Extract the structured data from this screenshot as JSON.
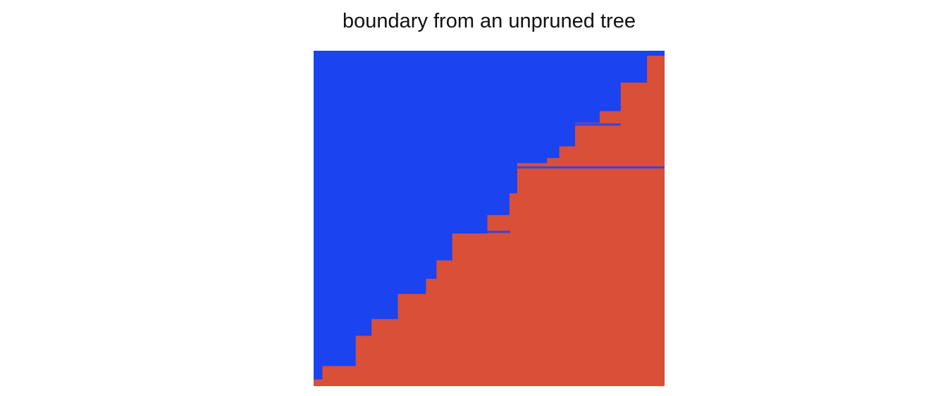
{
  "chart_data": {
    "type": "heatmap",
    "title": "boundary from an unpruned tree",
    "xlabel": "",
    "ylabel": "",
    "xlim": [
      0,
      1
    ],
    "ylim": [
      0,
      1
    ],
    "grid": false,
    "axes_visible": false,
    "colors": {
      "above_boundary": "#1b43f0",
      "below_boundary": "#d94f37"
    },
    "boundary_steps": [
      {
        "x0": 0.0,
        "x1": 0.025,
        "y": 0.02
      },
      {
        "x0": 0.025,
        "x1": 0.12,
        "y": 0.06
      },
      {
        "x0": 0.12,
        "x1": 0.165,
        "y": 0.15
      },
      {
        "x0": 0.165,
        "x1": 0.24,
        "y": 0.2
      },
      {
        "x0": 0.24,
        "x1": 0.32,
        "y": 0.275
      },
      {
        "x0": 0.32,
        "x1": 0.35,
        "y": 0.32
      },
      {
        "x0": 0.35,
        "x1": 0.395,
        "y": 0.375
      },
      {
        "x0": 0.395,
        "x1": 0.495,
        "y": 0.455
      },
      {
        "x0": 0.495,
        "x1": 0.558,
        "y": 0.51
      },
      {
        "x0": 0.558,
        "x1": 0.58,
        "y": 0.575
      },
      {
        "x0": 0.58,
        "x1": 0.665,
        "y": 0.665
      },
      {
        "x0": 0.665,
        "x1": 0.7,
        "y": 0.68
      },
      {
        "x0": 0.7,
        "x1": 0.745,
        "y": 0.715
      },
      {
        "x0": 0.745,
        "x1": 0.815,
        "y": 0.785
      },
      {
        "x0": 0.815,
        "x1": 0.875,
        "y": 0.82
      },
      {
        "x0": 0.875,
        "x1": 0.95,
        "y": 0.905
      },
      {
        "x0": 0.95,
        "x1": 1.0,
        "y": 0.985
      }
    ],
    "slivers": [
      {
        "x0": 0.395,
        "x1": 0.56,
        "y": 0.46,
        "label": "blue"
      },
      {
        "x0": 0.745,
        "x1": 0.875,
        "y": 0.78,
        "label": "blue"
      },
      {
        "x0": 0.58,
        "x1": 1.0,
        "y": 0.652,
        "label": "blue"
      }
    ]
  }
}
